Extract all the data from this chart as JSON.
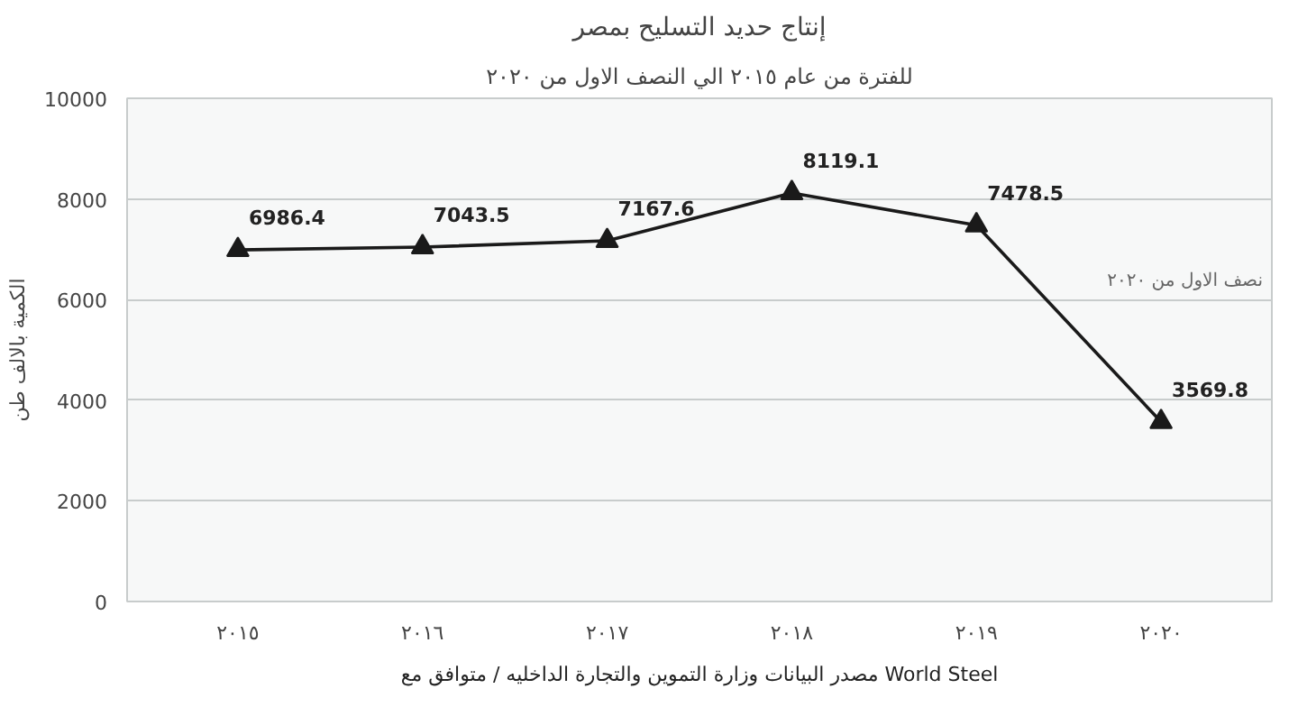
{
  "chart_data": {
    "type": "line",
    "title": "إنتاج حديد التسليح بمصر",
    "subtitle": "للفترة من عام ٢٠١٥ الي النصف الاول من ٢٠٢٠",
    "ylabel": "الكمية بالالف طن",
    "categories": [
      "٢٠١٥",
      "٢٠١٦",
      "٢٠١٧",
      "٢٠١٨",
      "٢٠١٩",
      "٢٠٢٠"
    ],
    "series": [
      {
        "color": "#1a1a1a",
        "values": [
          6986.4,
          7043.5,
          7167.6,
          8119.1,
          7478.5,
          3569.8
        ]
      }
    ],
    "ylim": [
      0,
      10000
    ],
    "yticks": [
      0,
      2000,
      4000,
      6000,
      8000,
      10000
    ],
    "grid": "y",
    "marker": "triangle",
    "line_style": "solid",
    "data_labels": true,
    "annotations": [
      "نصف الاول من ٢٠٢٠",
      "مصدر البيانات وزارة التموين والتجارة الداخليه / متوافق مع World Steel"
    ]
  }
}
